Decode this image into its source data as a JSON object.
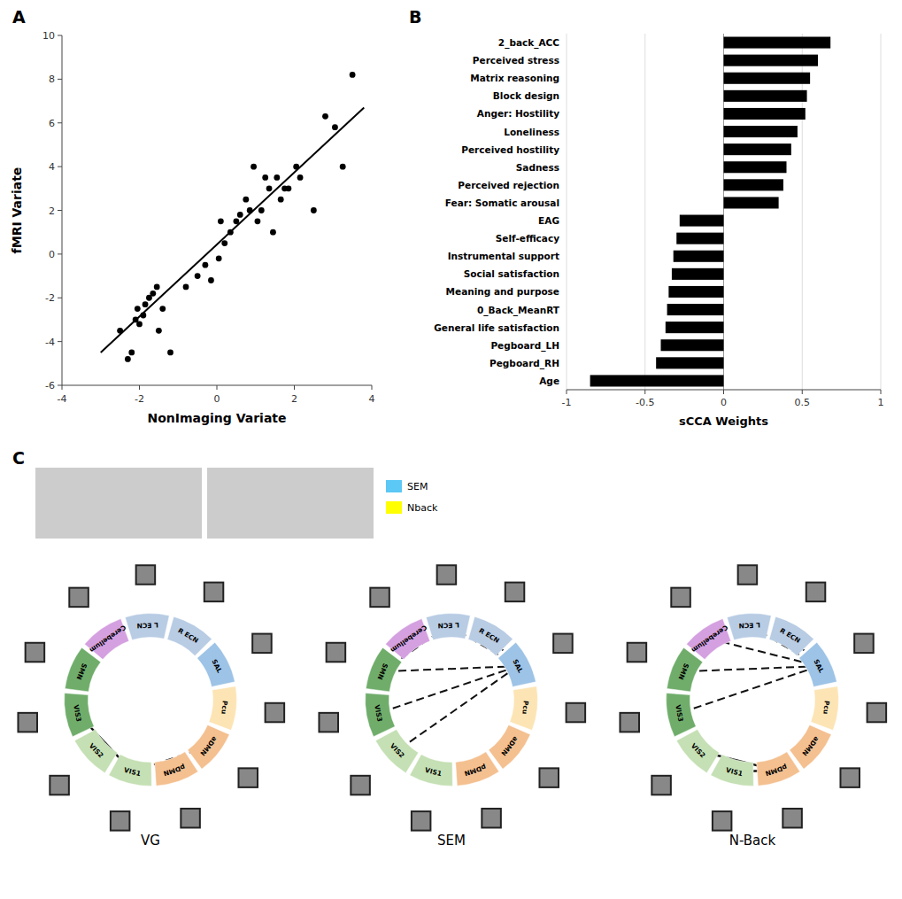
{
  "chart_data": [
    {
      "type": "scatter",
      "title": "A",
      "x_label": "NonImaging Variate",
      "y_label": "fMRI Variate",
      "xlim": [
        -4,
        4
      ],
      "xticks": [
        -4,
        -2,
        0,
        2,
        4
      ],
      "ylim": [
        -6,
        10
      ],
      "yticks": [
        -6,
        -4,
        -2,
        0,
        2,
        4,
        6,
        8,
        10
      ],
      "grid": false,
      "series": [
        {
          "type": "scatter",
          "marker": "circle",
          "color": "black",
          "x": [
            -2.5,
            -2.3,
            -2.2,
            -2.1,
            -2.05,
            -2.0,
            -1.9,
            -1.85,
            -1.75,
            -1.65,
            -1.55,
            -1.5,
            -1.4,
            -1.2,
            -0.8,
            -0.5,
            -0.3,
            -0.15,
            0.05,
            0.1,
            0.2,
            0.35,
            0.5,
            0.6,
            0.75,
            0.85,
            0.95,
            1.05,
            1.15,
            1.25,
            1.35,
            1.45,
            1.55,
            1.65,
            1.75,
            1.85,
            2.05,
            2.15,
            2.5,
            2.8,
            3.05,
            3.25,
            3.5
          ],
          "values": [
            -3.5,
            -4.8,
            -4.5,
            -3.0,
            -2.5,
            -3.2,
            -2.8,
            -2.3,
            -2.0,
            -1.8,
            -1.5,
            -3.5,
            -2.5,
            -4.5,
            -1.5,
            -1.0,
            -0.5,
            -1.2,
            -0.2,
            1.5,
            0.5,
            1.0,
            1.5,
            1.8,
            2.5,
            2.0,
            4.0,
            1.5,
            2.0,
            3.5,
            3.0,
            1.0,
            3.5,
            2.5,
            3.0,
            3.0,
            4.0,
            3.5,
            2.0,
            6.3,
            5.8,
            4.0,
            8.2
          ]
        },
        {
          "type": "line",
          "line_style": "solid",
          "color": "black",
          "x": [
            -3.0,
            3.8
          ],
          "values": [
            -4.5,
            6.7
          ]
        }
      ]
    },
    {
      "type": "bar",
      "orientation": "horizontal",
      "title": "B",
      "x_label": "sCCA Weights",
      "categories": [
        "2_back_ACC",
        "Perceived stress",
        "Matrix reasoning",
        "Block design",
        "Anger: Hostility",
        "Loneliness",
        "Perceived hostility",
        "Sadness",
        "Perceived rejection",
        "Fear: Somatic arousal",
        "EAG",
        "Self-efficacy",
        "Instrumental support",
        "Social satisfaction",
        "Meaning and purpose",
        "0_Back_MeanRT",
        "General life satisfaction",
        "Pegboard_LH",
        "Pegboard_RH",
        "Age"
      ],
      "values": [
        0.68,
        0.6,
        0.55,
        0.53,
        0.52,
        0.47,
        0.43,
        0.4,
        0.38,
        0.35,
        -0.28,
        -0.3,
        -0.32,
        -0.33,
        -0.35,
        -0.36,
        -0.37,
        -0.4,
        -0.43,
        -0.85
      ],
      "color": "black",
      "xlim": [
        -1,
        1
      ],
      "xticks": [
        -1,
        -0.5,
        0,
        0.5,
        1
      ],
      "grid": true
    },
    {
      "type": "image",
      "title": "C",
      "legend": "right",
      "series": [
        {
          "name": "SEM",
          "color": "#5bc8f5"
        },
        {
          "name": "Nback",
          "color": "#ffff00"
        }
      ]
    },
    {
      "type": "network",
      "title": "VG",
      "nodes": [
        "Cerebellum",
        "L ECN",
        "R ECN",
        "SAL",
        "Pcu",
        "aDMN",
        "pDMN",
        "VIS1",
        "VIS2",
        "VIS3",
        "SMN"
      ],
      "colors": [
        "#d4a0e0",
        "#b8cce4",
        "#b8cce4",
        "#9dc3e6",
        "#fce4b4",
        "#f4c090",
        "#f4c090",
        "#c5e0b4",
        "#c5e0b4",
        "#70ad6b",
        "#70ad6b"
      ],
      "series": [
        {
          "line_style": "dashed",
          "links": [
            [
              "aDMN",
              "VIS1"
            ]
          ]
        },
        {
          "line_style": "solid",
          "links": [
            [
              "VIS3",
              "VIS1"
            ]
          ]
        }
      ]
    },
    {
      "type": "network",
      "title": "SEM",
      "nodes": [
        "Cerebellum",
        "L ECN",
        "R ECN",
        "SAL",
        "Pcu",
        "aDMN",
        "pDMN",
        "VIS1",
        "VIS2",
        "VIS3",
        "SMN"
      ],
      "colors": [
        "#d4a0e0",
        "#b8cce4",
        "#b8cce4",
        "#9dc3e6",
        "#fce4b4",
        "#f4c090",
        "#f4c090",
        "#c5e0b4",
        "#c5e0b4",
        "#70ad6b",
        "#70ad6b"
      ],
      "series": [
        {
          "line_style": "dashed",
          "links": [
            [
              "L ECN",
              "SAL"
            ],
            [
              "L ECN",
              "SMN"
            ],
            [
              "R ECN",
              "SAL"
            ],
            [
              "SAL",
              "SMN"
            ],
            [
              "SAL",
              "VIS3"
            ],
            [
              "SAL",
              "VIS2"
            ]
          ]
        }
      ]
    },
    {
      "type": "network",
      "title": "N-Back",
      "nodes": [
        "Cerebellum",
        "L ECN",
        "R ECN",
        "SAL",
        "Pcu",
        "aDMN",
        "pDMN",
        "VIS1",
        "VIS2",
        "VIS3",
        "SMN"
      ],
      "colors": [
        "#d4a0e0",
        "#b8cce4",
        "#b8cce4",
        "#9dc3e6",
        "#fce4b4",
        "#f4c090",
        "#f4c090",
        "#c5e0b4",
        "#c5e0b4",
        "#70ad6b",
        "#70ad6b"
      ],
      "series": [
        {
          "line_style": "dashed",
          "links": [
            [
              "L ECN",
              "SAL"
            ],
            [
              "R ECN",
              "SAL"
            ],
            [
              "SAL",
              "SMN"
            ],
            [
              "SAL",
              "VIS3"
            ],
            [
              "Cerebellum",
              "SAL"
            ]
          ]
        },
        {
          "line_style": "solid",
          "links": [
            [
              "pDMN",
              "VIS2"
            ],
            [
              "pDMN",
              "VIS1"
            ]
          ]
        }
      ]
    }
  ]
}
